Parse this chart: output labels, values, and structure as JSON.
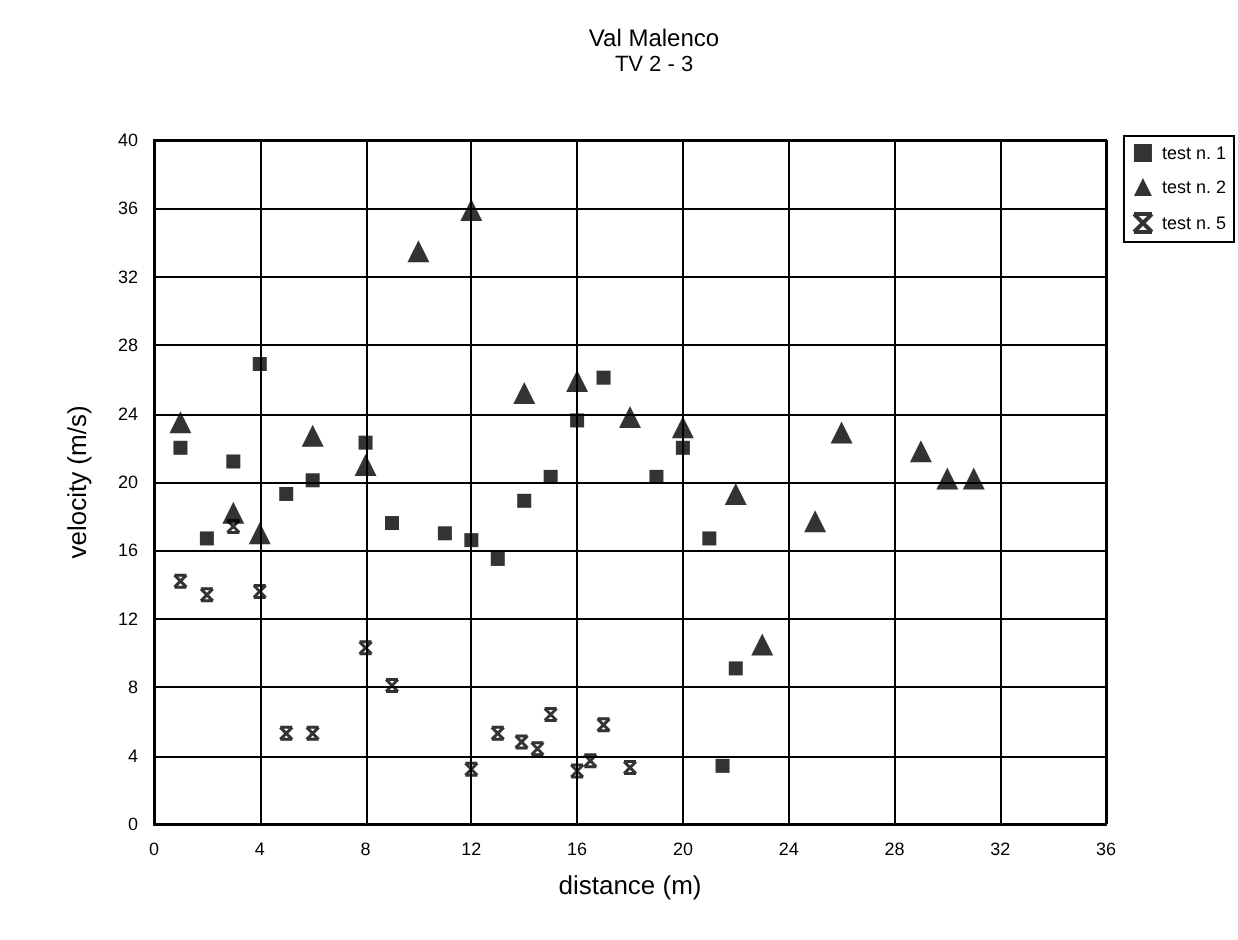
{
  "chart_data": {
    "type": "scatter",
    "title": "Val Malenco",
    "subtitle": "TV 2 - 3",
    "xlabel": "distance (m)",
    "ylabel": "velocity (m/s)",
    "xlim": [
      0,
      36
    ],
    "xticks": [
      0,
      4,
      8,
      12,
      16,
      20,
      24,
      28,
      32,
      36
    ],
    "ylim": [
      0,
      40
    ],
    "yticks": [
      0,
      4,
      8,
      12,
      16,
      20,
      24,
      28,
      32,
      36,
      40
    ],
    "grid": true,
    "legend": "top right",
    "series": [
      {
        "name": "test n. 1",
        "color": "#000000",
        "marker": "square",
        "x": [
          1,
          2,
          3,
          4,
          5,
          6,
          8,
          9,
          11,
          12,
          13,
          14,
          15,
          16,
          17,
          19,
          20,
          21,
          22,
          21.5
        ],
        "values": [
          22,
          16.7,
          21.2,
          26.9,
          19.3,
          20.1,
          22.3,
          17.6,
          17,
          16.6,
          15.5,
          18.9,
          20.3,
          23.6,
          26.1,
          20.3,
          22,
          16.7,
          9.1,
          3.4
        ]
      },
      {
        "name": "test n. 2",
        "color": "#000000",
        "marker": "triangle",
        "x": [
          1,
          3,
          4,
          6,
          8,
          10,
          12,
          14,
          16,
          18,
          20,
          22,
          23,
          25,
          26,
          29,
          30,
          31
        ],
        "values": [
          23.5,
          18.2,
          17,
          22.7,
          21,
          33.5,
          35.9,
          25.2,
          25.9,
          23.8,
          23.2,
          19.3,
          10.5,
          17.7,
          22.9,
          21.8,
          20.2,
          20.2
        ]
      },
      {
        "name": "test n. 5",
        "color": "#000000",
        "marker": "cross",
        "x": [
          1,
          2,
          3,
          4,
          5,
          6,
          8,
          9,
          12,
          13,
          13.9,
          14.5,
          15,
          16,
          16.5,
          17,
          18
        ],
        "values": [
          14.2,
          13.4,
          17.4,
          13.6,
          5.3,
          5.3,
          10.3,
          8.1,
          3.2,
          5.3,
          4.8,
          4.4,
          6.4,
          3.1,
          3.7,
          5.8,
          3.3
        ]
      }
    ]
  }
}
